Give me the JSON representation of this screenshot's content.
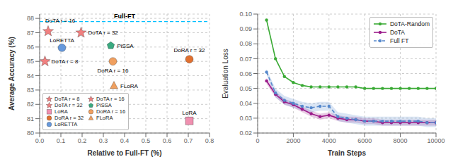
{
  "chart_data": [
    {
      "type": "scatter",
      "xlabel": "Relative to Full-FT (%)",
      "ylabel": "Average Accuracy (%)",
      "xlim": [
        0.0,
        0.8
      ],
      "ylim": [
        80.0,
        88.3
      ],
      "xticks": [
        {
          "value": 0.0,
          "label": "0.0"
        },
        0.1,
        0.2,
        0.3,
        0.4,
        0.5,
        0.6,
        0.7,
        0.8
      ],
      "yticks": [
        80,
        81,
        82,
        83,
        84,
        85,
        86,
        87,
        88
      ],
      "grid": true,
      "legend": "lower left",
      "annotations": [
        {
          "type": "hline",
          "y": 87.78,
          "text": "Full-FT",
          "color": "#00bfff",
          "line_style": "dashed"
        }
      ],
      "series": [
        {
          "name": "DoTA r = 8",
          "color": "#f08080",
          "marker": "star",
          "x": [
            0.025
          ],
          "values": [
            85.0
          ]
        },
        {
          "name": "DoTA r = 16",
          "color": "#f08080",
          "marker": "star",
          "x": [
            0.04
          ],
          "values": [
            87.1
          ]
        },
        {
          "name": "DoTA r = 32",
          "color": "#f08080",
          "marker": "star",
          "x": [
            0.195
          ],
          "values": [
            87.0
          ]
        },
        {
          "name": "PiSSA",
          "color": "#3aaa80",
          "marker": "pentagon",
          "x": [
            0.335
          ],
          "values": [
            86.1
          ]
        },
        {
          "name": "LoRA",
          "color": "#f090b0",
          "marker": "square",
          "x": [
            0.705
          ],
          "values": [
            80.85
          ]
        },
        {
          "name": "DoRA r = 16",
          "color": "#f0a060",
          "marker": "circle",
          "x": [
            0.345
          ],
          "values": [
            85.0
          ]
        },
        {
          "name": "DoRA r = 32",
          "color": "#e07030",
          "marker": "circle",
          "x": [
            0.705
          ],
          "values": [
            85.15
          ]
        },
        {
          "name": "FLoRA",
          "color": "#f0a060",
          "marker": "triangle",
          "x": [
            0.35
          ],
          "values": [
            83.3
          ]
        },
        {
          "name": "LoRETTA",
          "color": "#6699dd",
          "marker": "circle",
          "x": [
            0.105
          ],
          "values": [
            85.95
          ]
        }
      ]
    },
    {
      "type": "line",
      "xlabel": "Train Steps",
      "ylabel": "Evaluation Loss",
      "x": [
        500,
        1000,
        1500,
        2000,
        2500,
        3000,
        3500,
        4000,
        4500,
        5000,
        5500,
        6000,
        6500,
        7000,
        7500,
        8000,
        8500,
        9000,
        9500,
        10000
      ],
      "xlim": [
        0,
        10000
      ],
      "xticks": [
        0,
        2000,
        4000,
        6000,
        8000,
        10000
      ],
      "ylim": [
        0.02,
        0.1
      ],
      "yticks": [
        0.02,
        0.03,
        0.04,
        0.05,
        0.06,
        0.07,
        0.08,
        0.09,
        {
          "value": 0.1,
          "label": "0.10"
        }
      ],
      "grid": true,
      "legend": "upper right",
      "series": [
        {
          "name": "DoTA-Random",
          "color": "#3aaa35",
          "marker": "circle",
          "line_style": "solid",
          "values": [
            0.096,
            0.07,
            0.058,
            0.054,
            0.052,
            0.051,
            0.051,
            0.051,
            0.051,
            0.051,
            0.051,
            0.05,
            0.05,
            0.05,
            0.05,
            0.05,
            0.05,
            0.05,
            0.05,
            0.05
          ]
        },
        {
          "name": "DoTA",
          "color": "#9b1a8a",
          "marker": "circle",
          "line_style": "solid",
          "values": [
            0.055,
            0.046,
            0.041,
            0.039,
            0.036,
            0.033,
            0.031,
            0.032,
            0.03,
            0.029,
            0.029,
            0.028,
            0.028,
            0.027,
            0.027,
            0.027,
            0.027,
            0.027,
            0.027,
            0.027
          ],
          "lower": [
            0.053,
            0.044,
            0.039,
            0.037,
            0.034,
            0.031,
            0.029,
            0.03,
            0.028,
            0.027,
            0.027,
            0.026,
            0.026,
            0.025,
            0.025,
            0.025,
            0.025,
            0.025,
            0.025,
            0.025
          ],
          "upper": [
            0.057,
            0.048,
            0.043,
            0.041,
            0.038,
            0.035,
            0.033,
            0.034,
            0.032,
            0.031,
            0.031,
            0.03,
            0.03,
            0.029,
            0.029,
            0.029,
            0.029,
            0.029,
            0.029,
            0.029
          ]
        },
        {
          "name": "Full FT",
          "color": "#5588cc",
          "marker": "circle",
          "line_style": "dashed",
          "values": [
            0.061,
            0.047,
            0.042,
            0.04,
            0.038,
            0.037,
            0.038,
            0.038,
            0.031,
            0.03,
            0.029,
            0.028,
            0.028,
            0.028,
            0.028,
            0.028,
            0.028,
            0.028,
            0.027,
            0.027
          ],
          "lower": [
            0.059,
            0.044,
            0.039,
            0.037,
            0.035,
            0.034,
            0.035,
            0.035,
            0.028,
            0.027,
            0.026,
            0.025,
            0.025,
            0.025,
            0.025,
            0.025,
            0.025,
            0.025,
            0.024,
            0.024
          ],
          "upper": [
            0.063,
            0.05,
            0.045,
            0.043,
            0.041,
            0.04,
            0.041,
            0.041,
            0.034,
            0.033,
            0.032,
            0.031,
            0.031,
            0.031,
            0.031,
            0.031,
            0.031,
            0.031,
            0.03,
            0.03
          ]
        }
      ]
    }
  ]
}
